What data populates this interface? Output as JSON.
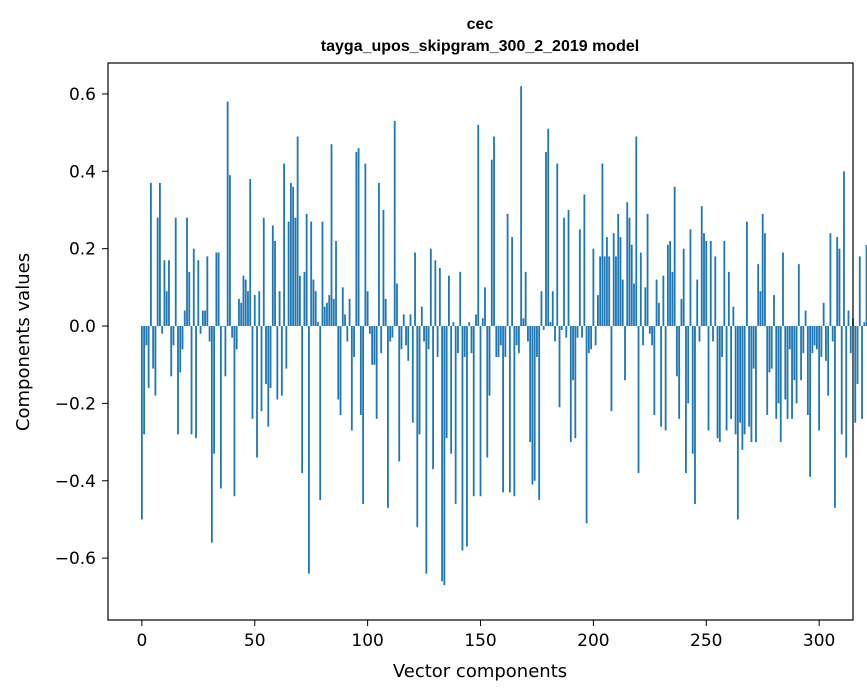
{
  "chart_data": {
    "type": "bar",
    "title": "cec",
    "subtitle": "tayga_upos_skipgram_300_2_2019 model",
    "xlabel": "Vector components",
    "ylabel": "Components values",
    "xlim": [
      -15,
      315
    ],
    "ylim": [
      -0.76,
      0.68
    ],
    "x_ticks": [
      0,
      50,
      100,
      150,
      200,
      250,
      300
    ],
    "x_tick_labels": [
      "0",
      "50",
      "100",
      "150",
      "200",
      "250",
      "300"
    ],
    "y_ticks": [
      -0.6,
      -0.4,
      -0.2,
      0.0,
      0.2,
      0.4,
      0.6
    ],
    "y_tick_labels": [
      "−0.6",
      "−0.4",
      "−0.2",
      "0.0",
      "0.2",
      "0.4",
      "0.6"
    ],
    "bar_color": "#1f77b4",
    "grid": false,
    "values": [
      -0.5,
      -0.28,
      -0.05,
      -0.16,
      0.37,
      -0.11,
      -0.18,
      0.28,
      0.37,
      -0.02,
      0.17,
      0.09,
      0.17,
      -0.13,
      -0.05,
      0.28,
      -0.28,
      -0.12,
      -0.06,
      0.04,
      0.28,
      0.14,
      -0.28,
      0.2,
      -0.29,
      0.17,
      -0.02,
      0.04,
      0.04,
      0.18,
      -0.04,
      -0.56,
      -0.33,
      0.19,
      0.19,
      -0.42,
      0.0,
      -0.13,
      0.58,
      0.39,
      -0.03,
      -0.44,
      -0.06,
      0.07,
      0.06,
      0.13,
      0.12,
      0.09,
      0.38,
      -0.24,
      0.08,
      -0.34,
      0.09,
      -0.22,
      0.28,
      -0.15,
      -0.26,
      -0.16,
      0.26,
      0.22,
      -0.19,
      0.09,
      -0.18,
      0.42,
      -0.11,
      0.27,
      0.37,
      0.36,
      0.28,
      0.49,
      0.13,
      -0.38,
      0.14,
      0.29,
      -0.64,
      0.27,
      0.12,
      0.09,
      0.01,
      -0.45,
      0.27,
      0.05,
      0.06,
      0.08,
      0.47,
      0.07,
      0.22,
      -0.19,
      -0.23,
      0.1,
      0.03,
      -0.04,
      0.07,
      -0.27,
      -0.08,
      0.45,
      0.46,
      -0.23,
      -0.46,
      0.42,
      0.09,
      -0.02,
      -0.1,
      -0.1,
      -0.24,
      0.37,
      -0.07,
      0.3,
      0.07,
      -0.47,
      -0.04,
      -0.03,
      0.53,
      0.11,
      -0.35,
      -0.06,
      0.03,
      -0.05,
      -0.09,
      0.03,
      -0.25,
      0.19,
      -0.52,
      -0.28,
      0.05,
      -0.04,
      -0.64,
      -0.06,
      0.2,
      -0.37,
      0.17,
      -0.08,
      0.15,
      -0.66,
      -0.67,
      -0.29,
      0.13,
      -0.33,
      0.01,
      -0.46,
      -0.07,
      0.14,
      -0.58,
      -0.08,
      -0.57,
      0.01,
      -0.07,
      -0.44,
      0.03,
      0.52,
      -0.44,
      0.02,
      0.1,
      -0.34,
      -0.18,
      0.43,
      0.49,
      -0.08,
      -0.08,
      -0.05,
      -0.43,
      -0.08,
      0.29,
      -0.43,
      0.23,
      -0.44,
      -0.05,
      -0.07,
      0.62,
      0.02,
      0.14,
      -0.04,
      -0.3,
      -0.41,
      -0.4,
      -0.08,
      -0.45,
      0.09,
      -0.01,
      0.45,
      0.51,
      0.01,
      0.09,
      -0.04,
      0.42,
      -0.21,
      -0.01,
      0.28,
      -0.03,
      0.3,
      -0.3,
      -0.14,
      -0.29,
      -0.03,
      0.25,
      -0.03,
      0.34,
      -0.51,
      -0.07,
      -0.06,
      0.2,
      -0.05,
      0.08,
      0.18,
      0.42,
      0.18,
      0.23,
      0.18,
      -0.22,
      0.24,
      0.18,
      0.29,
      0.23,
      0.12,
      -0.14,
      0.32,
      0.28,
      0.21,
      0.11,
      0.49,
      -0.38,
      0.19,
      -0.05,
      0.1,
      0.29,
      -0.02,
      -0.05,
      -0.23,
      0.12,
      0.06,
      -0.26,
      0.13,
      -0.27,
      0.21,
      0.22,
      0.14,
      0.36,
      -0.13,
      -0.24,
      0.07,
      0.2,
      -0.38,
      -0.2,
      0.25,
      -0.33,
      -0.46,
      0.12,
      -0.04,
      0.31,
      0.24,
      0.22,
      -0.27,
      0.22,
      -0.04,
      0.18,
      -0.29,
      -0.3,
      -0.08,
      0.22,
      -0.27,
      0.14,
      -0.24,
      0.05,
      -0.28,
      -0.5,
      -0.25,
      -0.32,
      -0.28,
      0.27,
      -0.26,
      -0.3,
      -0.11,
      -0.3,
      0.16,
      0.09,
      0.29,
      0.24,
      -0.23,
      -0.12,
      -0.11,
      0.08,
      -0.24,
      -0.2,
      -0.3,
      0.19,
      -0.19,
      -0.24,
      -0.06,
      -0.24,
      -0.14,
      -0.2,
      0.16,
      -0.14,
      -0.07,
      0.04,
      -0.23,
      -0.39,
      -0.07,
      -0.05,
      -0.06,
      -0.27,
      -0.08,
      0.06,
      -0.09,
      -0.18,
      0.24,
      -0.04,
      -0.47,
      0.23,
      0.2,
      -0.28,
      0.4,
      -0.34,
      0.04,
      -0.07,
      0.02,
      -0.25,
      -0.15,
      0.18,
      -0.24,
      0.01,
      0.21,
      -0.45
    ]
  }
}
